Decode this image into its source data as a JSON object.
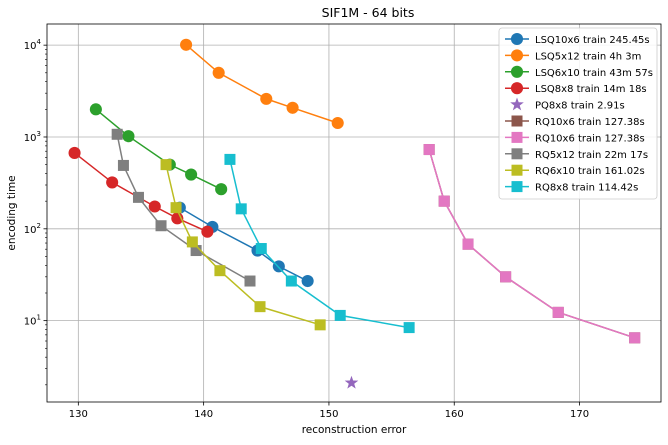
{
  "chart_data": {
    "type": "line",
    "title": "SIF1M - 64 bits",
    "xlabel": "reconstruction error",
    "ylabel": "encoding time",
    "xlim": [
      127.5,
      176.5
    ],
    "ylim": [
      1.3,
      17000
    ],
    "yscale": "log",
    "grid": true,
    "legend_position": "top-right",
    "x_ticks": [
      130,
      140,
      150,
      160,
      170
    ],
    "x_tick_labels": [
      "130",
      "140",
      "150",
      "160",
      "170"
    ],
    "y_ticks": [
      10,
      100,
      1000,
      10000
    ],
    "y_tick_labels": [
      "10^1",
      "10^2",
      "10^3",
      "10^4"
    ],
    "series": [
      {
        "name": "LSQ10x6 train 245.45s",
        "color": "#1f77b4",
        "marker": "circle",
        "line": true,
        "x": [
          138.1,
          140.7,
          144.3,
          146.0,
          148.3
        ],
        "y": [
          170,
          105,
          58,
          39,
          27
        ]
      },
      {
        "name": "LSQ5x12 train 4h 3m",
        "color": "#ff7f0e",
        "marker": "circle",
        "line": true,
        "x": [
          138.6,
          141.2,
          145.0,
          147.1,
          150.7
        ],
        "y": [
          10100,
          5000,
          2600,
          2080,
          1420
        ]
      },
      {
        "name": "LSQ6x10 train 43m 57s",
        "color": "#2ca02c",
        "marker": "circle",
        "line": true,
        "x": [
          131.4,
          134.0,
          137.3,
          139.0,
          141.4
        ],
        "y": [
          2000,
          1020,
          500,
          390,
          270
        ]
      },
      {
        "name": "LSQ8x8 train 14m 18s",
        "color": "#d62728",
        "marker": "circle",
        "line": true,
        "x": [
          129.7,
          132.7,
          136.1,
          137.9,
          140.3
        ],
        "y": [
          670,
          320,
          175,
          130,
          93
        ]
      },
      {
        "name": "PQ8x8 train 2.91s",
        "color": "#9467bd",
        "marker": "star",
        "line": false,
        "x": [
          151.8
        ],
        "y": [
          2.1
        ]
      },
      {
        "name": "RQ10x6 train 127.38s",
        "color": "#8c564b",
        "marker": "square",
        "line": true,
        "x": [
          158.0,
          159.2,
          161.1,
          164.1,
          168.3,
          174.4
        ],
        "y": [
          730,
          200,
          68,
          30,
          12.3,
          6.5
        ]
      },
      {
        "name": "RQ10x6 train 127.38s",
        "color": "#e377c2",
        "marker": "square",
        "line": true,
        "x": [
          158.0,
          159.2,
          161.1,
          164.1,
          168.3,
          174.4
        ],
        "y": [
          730,
          200,
          68,
          30,
          12.3,
          6.5
        ]
      },
      {
        "name": "RQ5x12 train 22m 17s",
        "color": "#7f7f7f",
        "marker": "square",
        "line": true,
        "x": [
          133.1,
          133.6,
          134.8,
          136.6,
          139.4,
          143.7
        ],
        "y": [
          1070,
          490,
          220,
          108,
          58,
          27
        ]
      },
      {
        "name": "RQ6x10 train 161.02s",
        "color": "#bcbd22",
        "marker": "square",
        "line": true,
        "x": [
          137.0,
          137.8,
          139.1,
          141.3,
          144.5,
          149.3
        ],
        "y": [
          500,
          170,
          72,
          35,
          14.2,
          9
        ]
      },
      {
        "name": "RQ8x8 train 114.42s",
        "color": "#17becf",
        "marker": "square",
        "line": true,
        "x": [
          142.1,
          143.0,
          144.6,
          147.0,
          150.9,
          156.4
        ],
        "y": [
          570,
          165,
          61,
          27,
          11.4,
          8.4
        ]
      }
    ]
  }
}
